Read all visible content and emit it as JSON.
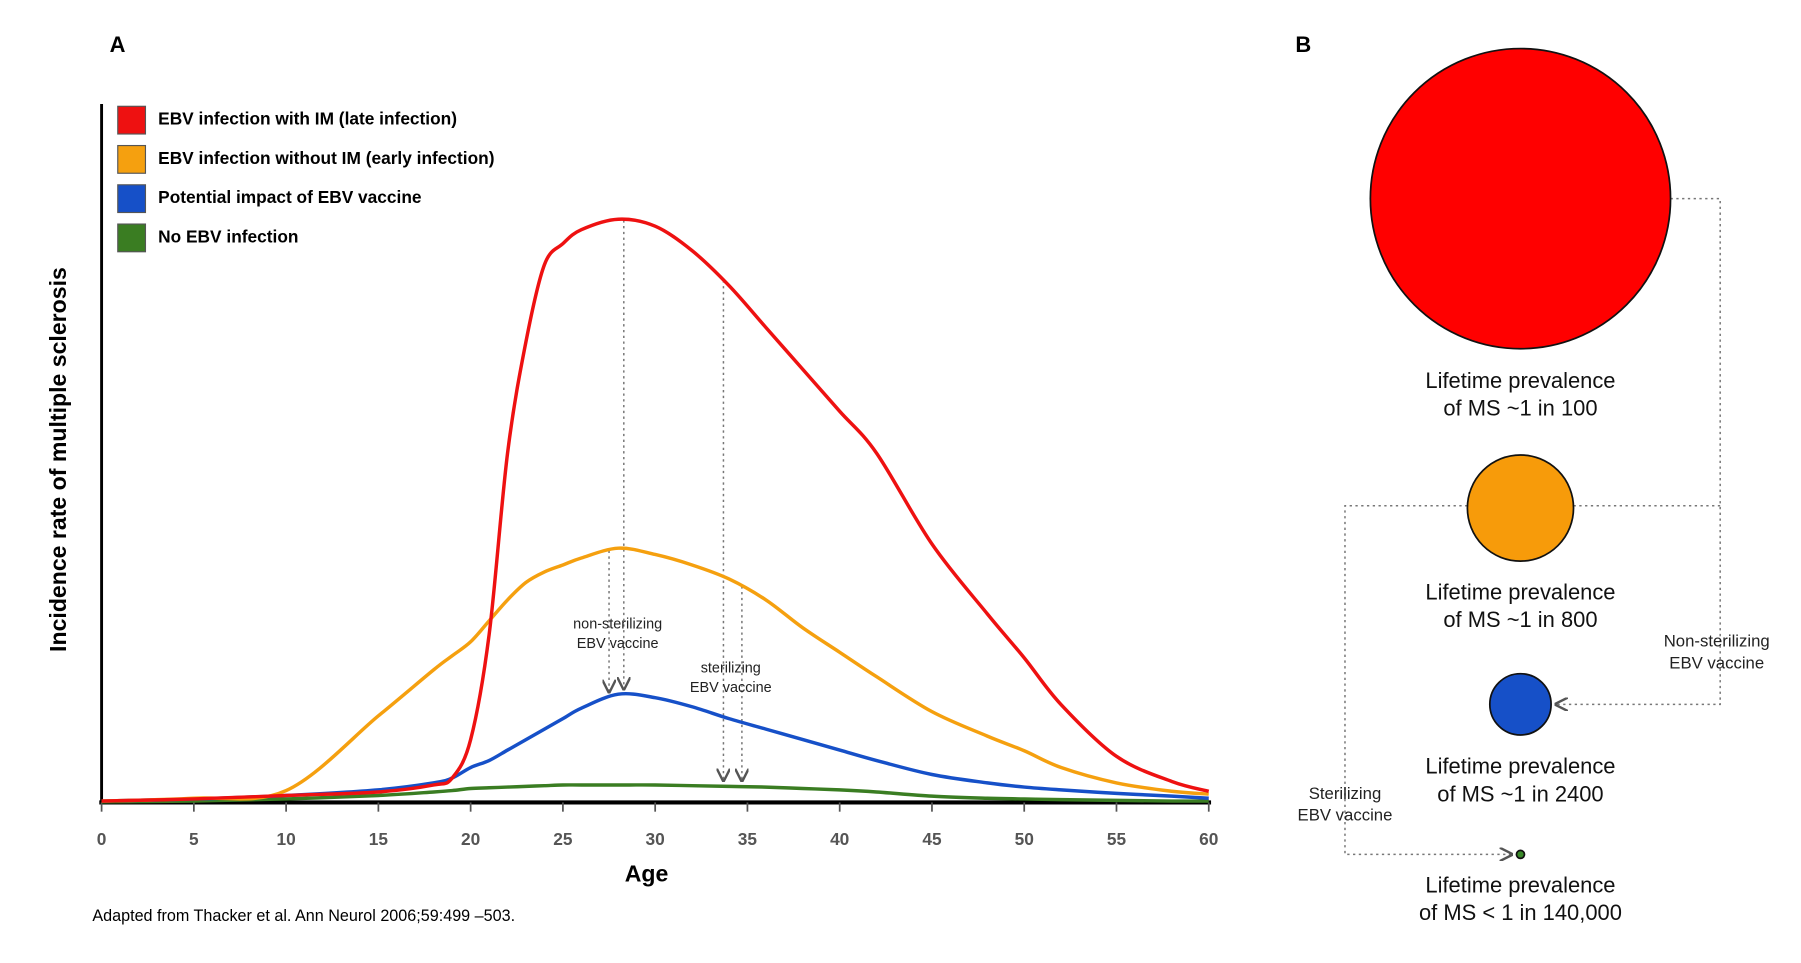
{
  "chart_data": [
    {
      "type": "line",
      "title": "A",
      "xlabel": "Age",
      "ylabel": "Incidence rate of multiple sclerosis",
      "x": [
        0,
        5,
        10,
        15,
        18,
        19,
        20,
        21,
        22,
        23,
        24,
        25,
        26,
        28,
        30,
        32,
        34,
        36,
        38,
        40,
        42,
        45,
        48,
        50,
        52,
        55,
        58,
        60
      ],
      "xlim": [
        0,
        60
      ],
      "xticks": [
        0,
        5,
        10,
        15,
        20,
        25,
        30,
        35,
        40,
        45,
        50,
        55,
        60
      ],
      "ylim": [
        0,
        100
      ],
      "series": [
        {
          "name": "EBV infection with IM (late infection)",
          "color": "#ee1111",
          "values": [
            0.2,
            0.5,
            1,
            1.5,
            2.5,
            3.5,
            9,
            24,
            50,
            66,
            77,
            80,
            82,
            83.5,
            82.5,
            79,
            74,
            68,
            62,
            56,
            50,
            37,
            27,
            20.7,
            14,
            6.6,
            3,
            1.6
          ]
        },
        {
          "name": "EBV infection without IM (early infection)",
          "color": "#f5a00f",
          "values": [
            0.2,
            0.6,
            1.7,
            12.4,
            19,
            21,
            23,
            26,
            29,
            31.5,
            33,
            34,
            35,
            36.4,
            35.5,
            34,
            32,
            29,
            25,
            21.5,
            18,
            13,
            9.5,
            7.4,
            5,
            2.8,
            1.6,
            1.2
          ]
        },
        {
          "name": "Potential impact of EBV vaccine",
          "color": "#1650c8",
          "values": [
            0.2,
            0.5,
            1,
            1.8,
            2.8,
            3.5,
            5,
            6,
            7.5,
            9,
            10.5,
            12,
            13.5,
            15.5,
            15,
            13.7,
            12,
            10.5,
            9,
            7.5,
            6,
            4,
            2.8,
            2.2,
            1.8,
            1.3,
            0.9,
            0.6
          ]
        },
        {
          "name": "No EBV infection",
          "color": "#3a7d22",
          "values": [
            0.1,
            0.2,
            0.5,
            1,
            1.5,
            1.7,
            2,
            2.1,
            2.2,
            2.3,
            2.4,
            2.5,
            2.5,
            2.5,
            2.5,
            2.4,
            2.3,
            2.2,
            2,
            1.8,
            1.5,
            0.9,
            0.6,
            0.5,
            0.4,
            0.3,
            0.2,
            0.2
          ]
        }
      ],
      "annotations": [
        [
          "non-sterilizing",
          "EBV vaccine"
        ],
        [
          "sterilizing",
          "EBV vaccine"
        ]
      ],
      "source": "Adapted from Thacker et al. Ann Neurol 2006;59:499 –503."
    },
    {
      "type": "bubble",
      "title": "B",
      "values": [
        100,
        800,
        2400,
        140000
      ],
      "colors": [
        "#ff0000",
        "#f79b0a",
        "#1650c8",
        "#3a8a2a"
      ],
      "labels": [
        [
          "Lifetime prevalence",
          "of MS ~1 in 100"
        ],
        [
          "Lifetime prevalence",
          "of MS ~1 in 800"
        ],
        [
          "Lifetime prevalence",
          "of MS ~1 in 2400"
        ],
        [
          "Lifetime prevalence",
          "of MS < 1 in 140,000"
        ]
      ],
      "annotations": [
        [
          "Non-sterilizing",
          "EBV vaccine"
        ],
        [
          "Sterilizing",
          "EBV vaccine"
        ]
      ]
    }
  ]
}
